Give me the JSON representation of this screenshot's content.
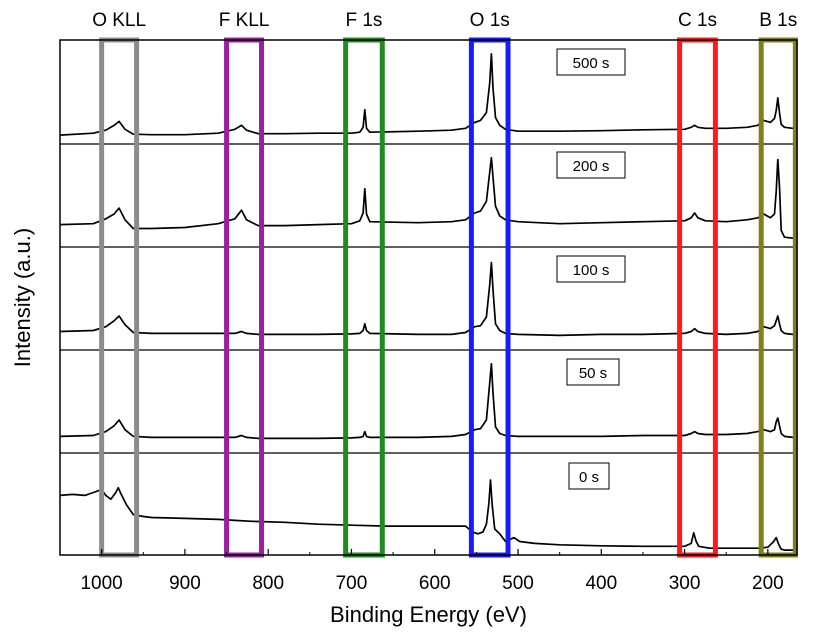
{
  "chart_data": {
    "type": "line",
    "title": "",
    "xlabel": "Binding Energy (eV)",
    "ylabel": "Intensity (a.u.)",
    "xlim": [
      1050,
      165
    ],
    "x_reversed": true,
    "x_ticks": [
      1000,
      900,
      800,
      700,
      600,
      500,
      400,
      300,
      200
    ],
    "x_tick_labels": [
      "1000",
      "900",
      "800",
      "700",
      "600",
      "500",
      "400",
      "300",
      "200"
    ],
    "regions": [
      {
        "label": "O KLL",
        "range": [
          1000,
          958
        ],
        "color": "#8c8c8c"
      },
      {
        "label": "F KLL",
        "range": [
          850,
          808
        ],
        "color": "#9b1fa0"
      },
      {
        "label": "F 1s",
        "range": [
          707,
          663
        ],
        "color": "#1e8c1e"
      },
      {
        "label": "O 1s",
        "range": [
          556,
          512
        ],
        "color": "#1a1aff"
      },
      {
        "label": "C 1s",
        "range": [
          306,
          263
        ],
        "color": "#ff1a1a"
      },
      {
        "label": "B 1s",
        "range": [
          208,
          167
        ],
        "color": "#808014"
      }
    ],
    "series": [
      {
        "name": "500 s",
        "points": [
          [
            1050,
            0.07
          ],
          [
            1010,
            0.09
          ],
          [
            995,
            0.12
          ],
          [
            985,
            0.17
          ],
          [
            979,
            0.21
          ],
          [
            972,
            0.13
          ],
          [
            962,
            0.08
          ],
          [
            940,
            0.075
          ],
          [
            900,
            0.075
          ],
          [
            860,
            0.09
          ],
          [
            840,
            0.13
          ],
          [
            832,
            0.17
          ],
          [
            826,
            0.12
          ],
          [
            812,
            0.085
          ],
          [
            780,
            0.085
          ],
          [
            740,
            0.09
          ],
          [
            700,
            0.09
          ],
          [
            690,
            0.1
          ],
          [
            686,
            0.15
          ],
          [
            684,
            0.33
          ],
          [
            682,
            0.14
          ],
          [
            678,
            0.1
          ],
          [
            620,
            0.11
          ],
          [
            580,
            0.12
          ],
          [
            563,
            0.14
          ],
          [
            552,
            0.2
          ],
          [
            545,
            0.22
          ],
          [
            538,
            0.3
          ],
          [
            534,
            0.6
          ],
          [
            532,
            0.9
          ],
          [
            530,
            0.55
          ],
          [
            527,
            0.25
          ],
          [
            522,
            0.17
          ],
          [
            515,
            0.13
          ],
          [
            500,
            0.11
          ],
          [
            450,
            0.11
          ],
          [
            400,
            0.115
          ],
          [
            350,
            0.125
          ],
          [
            300,
            0.13
          ],
          [
            292,
            0.15
          ],
          [
            288,
            0.17
          ],
          [
            284,
            0.15
          ],
          [
            275,
            0.14
          ],
          [
            250,
            0.14
          ],
          [
            225,
            0.15
          ],
          [
            212,
            0.17
          ],
          [
            205,
            0.22
          ],
          [
            197,
            0.2
          ],
          [
            192,
            0.24
          ],
          [
            190,
            0.32
          ],
          [
            188,
            0.45
          ],
          [
            186,
            0.3
          ],
          [
            184,
            0.18
          ],
          [
            180,
            0.15
          ],
          [
            170,
            0.14
          ],
          [
            165,
            0.14
          ]
        ]
      },
      {
        "name": "200 s",
        "points": [
          [
            1050,
            0.21
          ],
          [
            1010,
            0.22
          ],
          [
            995,
            0.27
          ],
          [
            985,
            0.32
          ],
          [
            979,
            0.38
          ],
          [
            972,
            0.26
          ],
          [
            962,
            0.17
          ],
          [
            940,
            0.17
          ],
          [
            900,
            0.18
          ],
          [
            860,
            0.22
          ],
          [
            840,
            0.27
          ],
          [
            832,
            0.36
          ],
          [
            826,
            0.26
          ],
          [
            812,
            0.2
          ],
          [
            780,
            0.2
          ],
          [
            740,
            0.21
          ],
          [
            700,
            0.22
          ],
          [
            690,
            0.25
          ],
          [
            686,
            0.33
          ],
          [
            684,
            0.58
          ],
          [
            682,
            0.32
          ],
          [
            678,
            0.24
          ],
          [
            620,
            0.23
          ],
          [
            580,
            0.24
          ],
          [
            563,
            0.26
          ],
          [
            552,
            0.33
          ],
          [
            545,
            0.35
          ],
          [
            538,
            0.45
          ],
          [
            534,
            0.75
          ],
          [
            532,
            0.9
          ],
          [
            530,
            0.7
          ],
          [
            527,
            0.4
          ],
          [
            522,
            0.3
          ],
          [
            515,
            0.26
          ],
          [
            500,
            0.24
          ],
          [
            450,
            0.22
          ],
          [
            400,
            0.23
          ],
          [
            350,
            0.24
          ],
          [
            300,
            0.25
          ],
          [
            292,
            0.28
          ],
          [
            288,
            0.33
          ],
          [
            284,
            0.28
          ],
          [
            275,
            0.25
          ],
          [
            250,
            0.24
          ],
          [
            225,
            0.26
          ],
          [
            212,
            0.28
          ],
          [
            205,
            0.32
          ],
          [
            197,
            0.28
          ],
          [
            192,
            0.32
          ],
          [
            190,
            0.55
          ],
          [
            188,
            0.88
          ],
          [
            186,
            0.6
          ],
          [
            184,
            0.15
          ],
          [
            180,
            0.08
          ],
          [
            170,
            0.07
          ],
          [
            165,
            0.06
          ]
        ]
      },
      {
        "name": "100 s",
        "points": [
          [
            1050,
            0.17
          ],
          [
            1010,
            0.18
          ],
          [
            995,
            0.22
          ],
          [
            985,
            0.28
          ],
          [
            979,
            0.33
          ],
          [
            972,
            0.24
          ],
          [
            962,
            0.16
          ],
          [
            940,
            0.15
          ],
          [
            900,
            0.15
          ],
          [
            860,
            0.15
          ],
          [
            840,
            0.15
          ],
          [
            832,
            0.17
          ],
          [
            826,
            0.15
          ],
          [
            812,
            0.14
          ],
          [
            780,
            0.14
          ],
          [
            740,
            0.14
          ],
          [
            700,
            0.145
          ],
          [
            690,
            0.15
          ],
          [
            686,
            0.18
          ],
          [
            684,
            0.25
          ],
          [
            682,
            0.18
          ],
          [
            678,
            0.15
          ],
          [
            620,
            0.14
          ],
          [
            580,
            0.14
          ],
          [
            563,
            0.16
          ],
          [
            552,
            0.22
          ],
          [
            545,
            0.23
          ],
          [
            538,
            0.32
          ],
          [
            534,
            0.65
          ],
          [
            532,
            0.88
          ],
          [
            530,
            0.6
          ],
          [
            527,
            0.25
          ],
          [
            522,
            0.18
          ],
          [
            515,
            0.15
          ],
          [
            500,
            0.14
          ],
          [
            450,
            0.13
          ],
          [
            400,
            0.14
          ],
          [
            350,
            0.14
          ],
          [
            300,
            0.15
          ],
          [
            292,
            0.17
          ],
          [
            288,
            0.2
          ],
          [
            284,
            0.17
          ],
          [
            275,
            0.15
          ],
          [
            250,
            0.14
          ],
          [
            225,
            0.15
          ],
          [
            212,
            0.17
          ],
          [
            205,
            0.22
          ],
          [
            197,
            0.2
          ],
          [
            192,
            0.23
          ],
          [
            190,
            0.28
          ],
          [
            188,
            0.33
          ],
          [
            186,
            0.25
          ],
          [
            184,
            0.18
          ],
          [
            180,
            0.15
          ],
          [
            170,
            0.14
          ],
          [
            165,
            0.13
          ]
        ]
      },
      {
        "name": "50 s",
        "points": [
          [
            1050,
            0.15
          ],
          [
            1010,
            0.16
          ],
          [
            995,
            0.2
          ],
          [
            985,
            0.26
          ],
          [
            979,
            0.32
          ],
          [
            972,
            0.22
          ],
          [
            962,
            0.15
          ],
          [
            940,
            0.14
          ],
          [
            900,
            0.14
          ],
          [
            860,
            0.14
          ],
          [
            840,
            0.14
          ],
          [
            832,
            0.16
          ],
          [
            826,
            0.14
          ],
          [
            812,
            0.13
          ],
          [
            780,
            0.13
          ],
          [
            740,
            0.13
          ],
          [
            700,
            0.135
          ],
          [
            690,
            0.14
          ],
          [
            686,
            0.15
          ],
          [
            684,
            0.2
          ],
          [
            682,
            0.15
          ],
          [
            678,
            0.14
          ],
          [
            620,
            0.14
          ],
          [
            580,
            0.15
          ],
          [
            563,
            0.17
          ],
          [
            552,
            0.22
          ],
          [
            545,
            0.23
          ],
          [
            538,
            0.32
          ],
          [
            534,
            0.7
          ],
          [
            532,
            0.9
          ],
          [
            530,
            0.6
          ],
          [
            527,
            0.25
          ],
          [
            522,
            0.18
          ],
          [
            515,
            0.16
          ],
          [
            500,
            0.15
          ],
          [
            450,
            0.15
          ],
          [
            400,
            0.15
          ],
          [
            350,
            0.16
          ],
          [
            300,
            0.16
          ],
          [
            292,
            0.18
          ],
          [
            288,
            0.2
          ],
          [
            284,
            0.18
          ],
          [
            275,
            0.17
          ],
          [
            250,
            0.17
          ],
          [
            225,
            0.18
          ],
          [
            212,
            0.2
          ],
          [
            205,
            0.22
          ],
          [
            197,
            0.2
          ],
          [
            192,
            0.22
          ],
          [
            190,
            0.3
          ],
          [
            188,
            0.34
          ],
          [
            186,
            0.26
          ],
          [
            184,
            0.18
          ],
          [
            180,
            0.15
          ],
          [
            170,
            0.14
          ],
          [
            165,
            0.13
          ]
        ]
      },
      {
        "name": "0 s",
        "points": [
          [
            1050,
            0.6
          ],
          [
            1035,
            0.61
          ],
          [
            1020,
            0.6
          ],
          [
            1010,
            0.63
          ],
          [
            1000,
            0.66
          ],
          [
            995,
            0.6
          ],
          [
            989,
            0.56
          ],
          [
            983,
            0.63
          ],
          [
            980,
            0.68
          ],
          [
            977,
            0.62
          ],
          [
            970,
            0.5
          ],
          [
            962,
            0.4
          ],
          [
            950,
            0.38
          ],
          [
            940,
            0.37
          ],
          [
            900,
            0.36
          ],
          [
            860,
            0.35
          ],
          [
            840,
            0.34
          ],
          [
            820,
            0.33
          ],
          [
            780,
            0.32
          ],
          [
            740,
            0.3
          ],
          [
            700,
            0.29
          ],
          [
            660,
            0.28
          ],
          [
            620,
            0.28
          ],
          [
            580,
            0.28
          ],
          [
            563,
            0.28
          ],
          [
            555,
            0.22
          ],
          [
            548,
            0.2
          ],
          [
            542,
            0.22
          ],
          [
            538,
            0.3
          ],
          [
            535,
            0.52
          ],
          [
            533,
            0.76
          ],
          [
            531,
            0.5
          ],
          [
            528,
            0.25
          ],
          [
            522,
            0.2
          ],
          [
            515,
            0.12
          ],
          [
            505,
            0.16
          ],
          [
            498,
            0.12
          ],
          [
            480,
            0.1
          ],
          [
            450,
            0.085
          ],
          [
            400,
            0.075
          ],
          [
            350,
            0.07
          ],
          [
            300,
            0.07
          ],
          [
            292,
            0.1
          ],
          [
            289,
            0.21
          ],
          [
            286,
            0.12
          ],
          [
            283,
            0.07
          ],
          [
            270,
            0.05
          ],
          [
            250,
            0.05
          ],
          [
            225,
            0.05
          ],
          [
            210,
            0.05
          ],
          [
            200,
            0.06
          ],
          [
            193,
            0.12
          ],
          [
            190,
            0.16
          ],
          [
            187,
            0.09
          ],
          [
            184,
            0.04
          ],
          [
            180,
            0.03
          ],
          [
            170,
            0.03
          ],
          [
            165,
            0.03
          ]
        ]
      }
    ],
    "series_label_positions": [
      "top-right of panel",
      "top-right of panel",
      "top-right of panel",
      "top-right of panel",
      "top-right of panel"
    ]
  }
}
